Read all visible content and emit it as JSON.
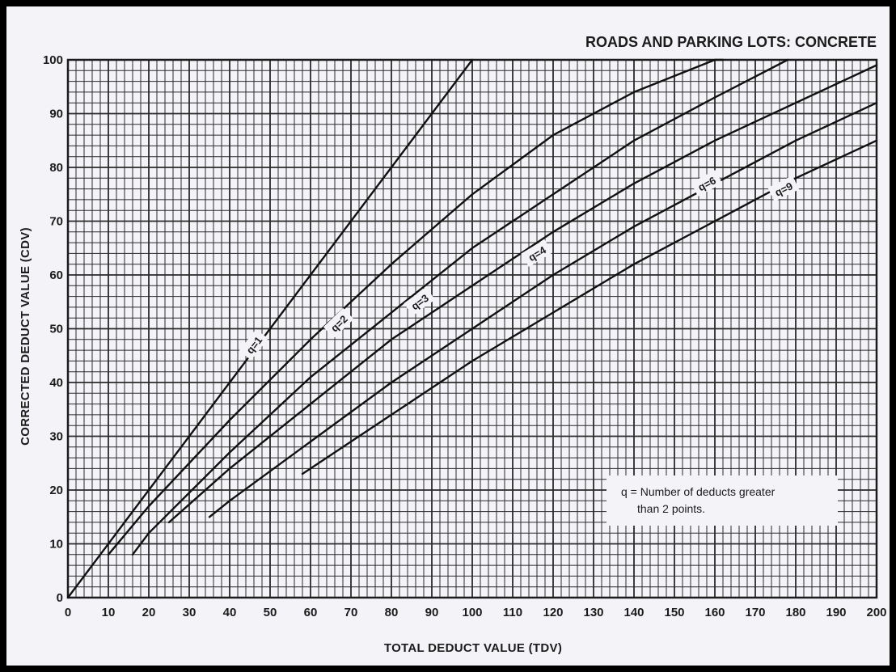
{
  "chart_data": {
    "type": "line",
    "title": "ROADS AND PARKING LOTS:  CONCRETE",
    "xlabel": "TOTAL DEDUCT VALUE (TDV)",
    "ylabel": "CORRECTED DEDUCT VALUE (CDV)",
    "xlim": [
      0,
      200
    ],
    "ylim": [
      0,
      100
    ],
    "xticks": [
      0,
      10,
      20,
      30,
      40,
      50,
      60,
      70,
      80,
      90,
      100,
      110,
      120,
      130,
      140,
      150,
      160,
      170,
      180,
      190,
      200
    ],
    "yticks": [
      0,
      10,
      20,
      30,
      40,
      50,
      60,
      70,
      80,
      90,
      100
    ],
    "grid": true,
    "series": [
      {
        "name": "q=1",
        "x": [
          0,
          100
        ],
        "y": [
          0,
          100
        ]
      },
      {
        "name": "q=2",
        "x": [
          10,
          20,
          40,
          60,
          80,
          100,
          120,
          140,
          160,
          162
        ],
        "y": [
          8,
          17,
          33,
          48,
          62,
          75,
          86,
          94,
          100,
          100
        ]
      },
      {
        "name": "q=3",
        "x": [
          16,
          20,
          40,
          60,
          80,
          100,
          120,
          140,
          160,
          178
        ],
        "y": [
          8,
          12,
          27,
          41,
          53,
          65,
          75,
          85,
          93,
          100
        ]
      },
      {
        "name": "q=4",
        "x": [
          25,
          40,
          60,
          80,
          100,
          120,
          140,
          160,
          180,
          200
        ],
        "y": [
          14,
          24,
          36,
          48,
          58,
          68,
          77,
          85,
          92,
          99
        ]
      },
      {
        "name": "q=6",
        "x": [
          35,
          40,
          60,
          80,
          100,
          120,
          140,
          160,
          180,
          200
        ],
        "y": [
          15,
          18,
          29,
          40,
          50,
          60,
          69,
          77,
          85,
          92
        ]
      },
      {
        "name": "q=9",
        "x": [
          58,
          60,
          80,
          100,
          120,
          140,
          160,
          180,
          200
        ],
        "y": [
          23,
          24,
          34,
          44,
          53,
          62,
          70,
          78,
          85
        ]
      }
    ],
    "curve_labels": [
      {
        "text": "q=1",
        "x": 46,
        "y": 47,
        "angle": -52
      },
      {
        "text": "q=2",
        "x": 67,
        "y": 51,
        "angle": -44
      },
      {
        "text": "q=3",
        "x": 87,
        "y": 55,
        "angle": -36
      },
      {
        "text": "q=4",
        "x": 116,
        "y": 64,
        "angle": -31
      },
      {
        "text": "q=6",
        "x": 158,
        "y": 77,
        "angle": -28
      },
      {
        "text": "q=9",
        "x": 177,
        "y": 76,
        "angle": -26
      }
    ],
    "annotation": [
      "q = Number of deducts greater",
      "than 2 points."
    ]
  }
}
